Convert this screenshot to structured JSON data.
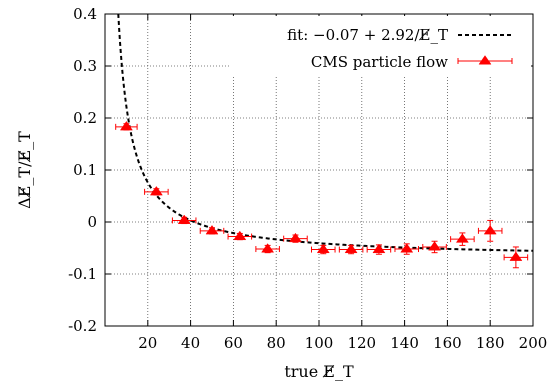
{
  "chart_data": {
    "type": "scatter",
    "xlabel": "true E̸_T",
    "ylabel": "ΔE̸_T/E̸_T",
    "xlim": [
      0,
      200
    ],
    "ylim": [
      -0.2,
      0.4
    ],
    "xticks": [
      20,
      40,
      60,
      80,
      100,
      120,
      140,
      160,
      180,
      200
    ],
    "yticks": [
      -0.2,
      -0.1,
      0,
      0.1,
      0.2,
      0.3,
      0.4
    ],
    "xtick_labels": [
      "20",
      "40",
      "60",
      "80",
      "100",
      "120",
      "140",
      "160",
      "180",
      "200"
    ],
    "ytick_labels": [
      "-0.2",
      "-0.1",
      "0",
      "0.1",
      "0.2",
      "0.3",
      "0.4"
    ],
    "grid": true,
    "legend_position": "top-right",
    "series": [
      {
        "name": "CMS particle flow",
        "color": "#ff0000",
        "marker": "triangle",
        "points": [
          {
            "x": 10,
            "y": 0.183,
            "xerr": 5,
            "yerr": 0.006
          },
          {
            "x": 24,
            "y": 0.058,
            "xerr": 5.5,
            "yerr": 0.006
          },
          {
            "x": 37,
            "y": 0.003,
            "xerr": 5.5,
            "yerr": 0.006
          },
          {
            "x": 50,
            "y": -0.017,
            "xerr": 5.5,
            "yerr": 0.006
          },
          {
            "x": 63,
            "y": -0.028,
            "xerr": 5.5,
            "yerr": 0.006
          },
          {
            "x": 76,
            "y": -0.052,
            "xerr": 5.5,
            "yerr": 0.007
          },
          {
            "x": 89,
            "y": -0.032,
            "xerr": 5.5,
            "yerr": 0.007
          },
          {
            "x": 102,
            "y": -0.053,
            "xerr": 5.5,
            "yerr": 0.008
          },
          {
            "x": 115,
            "y": -0.053,
            "xerr": 5.5,
            "yerr": 0.008
          },
          {
            "x": 128,
            "y": -0.053,
            "xerr": 5.5,
            "yerr": 0.009
          },
          {
            "x": 141,
            "y": -0.052,
            "xerr": 5.5,
            "yerr": 0.01
          },
          {
            "x": 154,
            "y": -0.048,
            "xerr": 5.5,
            "yerr": 0.011
          },
          {
            "x": 167,
            "y": -0.033,
            "xerr": 5.5,
            "yerr": 0.012
          },
          {
            "x": 180,
            "y": -0.017,
            "xerr": 5.5,
            "yerr": 0.02
          },
          {
            "x": 192,
            "y": -0.068,
            "xerr": 5.5,
            "yerr": 0.02
          }
        ]
      },
      {
        "name": "fit: −0.07 + 2.92/E̸_T",
        "color": "#000000",
        "style": "dashed",
        "function": {
          "a": -0.07,
          "b": 2.92,
          "form": "a + b/x"
        }
      }
    ]
  }
}
